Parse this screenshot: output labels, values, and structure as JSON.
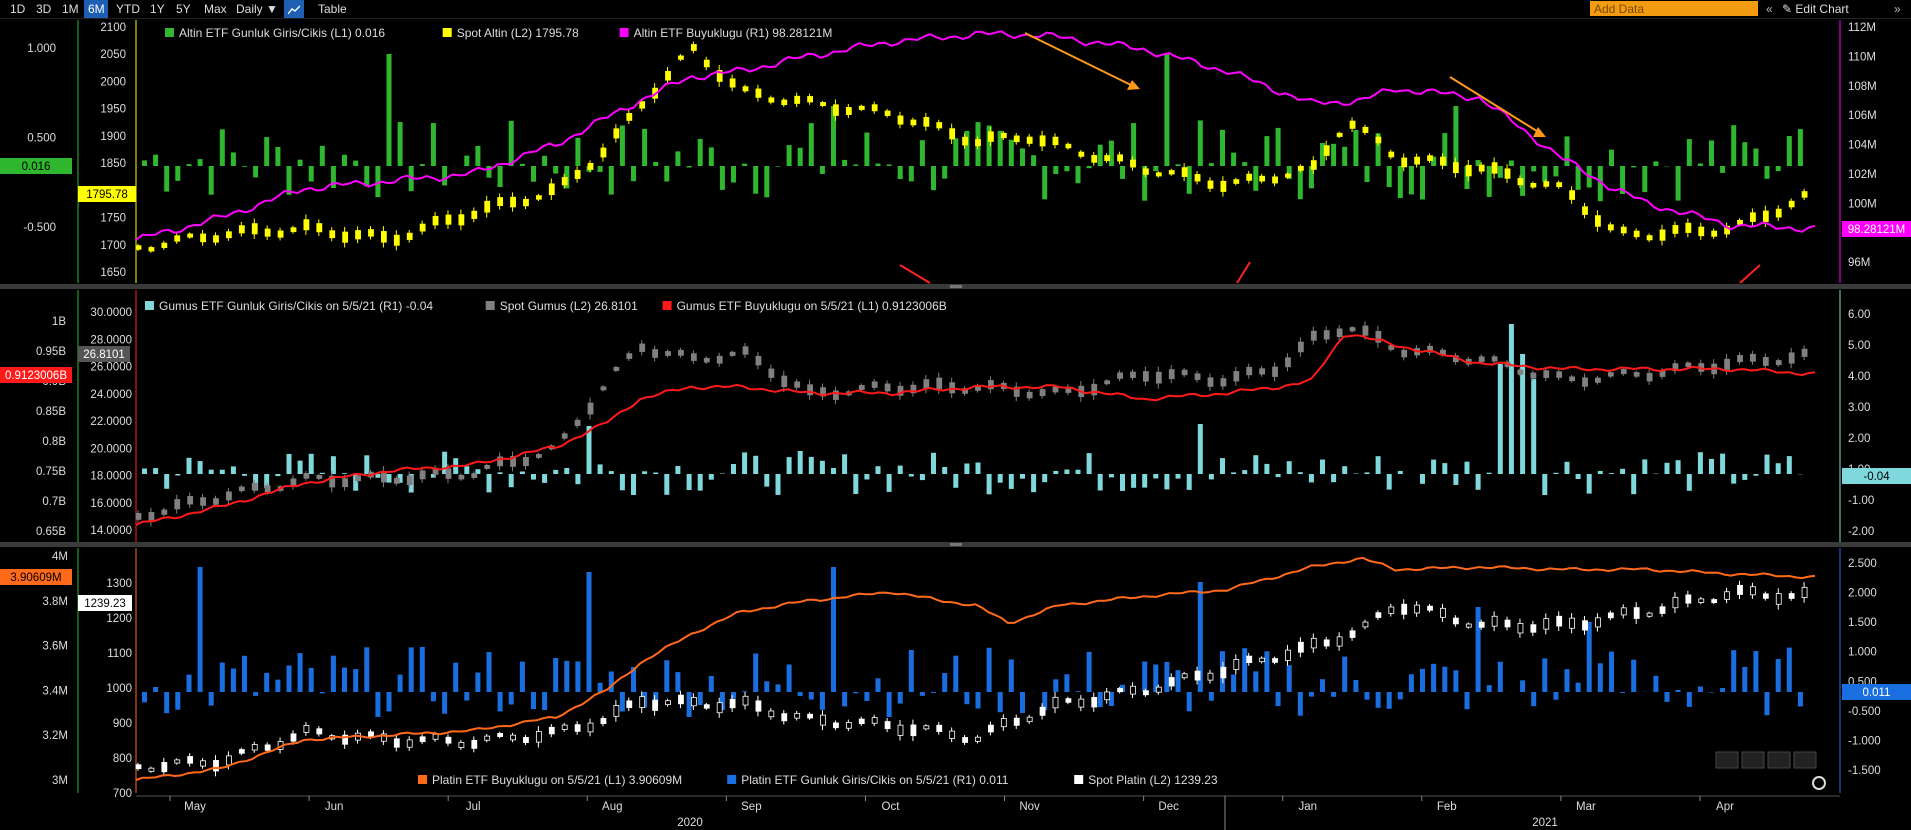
{
  "toolbar": {
    "ranges": [
      "1D",
      "3D",
      "1M",
      "6M",
      "YTD",
      "1Y",
      "5Y",
      "Max"
    ],
    "active_range": "6M",
    "period": "Daily ▼",
    "table_label": "Table",
    "add_data_placeholder": "Add Data",
    "edit_chart_label": "Edit Chart"
  },
  "colors": {
    "gold_flow": "#2fb82f",
    "gold_price": "#ffff00",
    "gold_etf": "#ff00ff",
    "silver_flow": "#7fd8dc",
    "silver_price": "#808080",
    "silver_etf": "#ff1a1a",
    "plat_etf": "#ff6a1a",
    "plat_flow": "#1a6fe0",
    "plat_price": "#ffffff",
    "arrow": "#ff9a1a",
    "accent_red": "#ff2222"
  },
  "x_axis": {
    "months": [
      "May",
      "Jun",
      "Jul",
      "Aug",
      "Sep",
      "Oct",
      "Nov",
      "Dec",
      "Jan",
      "Feb",
      "Mar",
      "Apr"
    ],
    "years": [
      "2020",
      "2021"
    ]
  },
  "chart_data": [
    {
      "type": "line",
      "panel": "gold",
      "legend": [
        {
          "name": "Altin ETF Gunluk Giris/Cikis (L1) 0.016",
          "color": "#2fb82f"
        },
        {
          "name": "Spot Altin (L2) 1795.78",
          "color": "#ffff00"
        },
        {
          "name": "Altin ETF Buyuklugu (R1) 98.28121M",
          "color": "#ff00ff"
        }
      ],
      "left_axis_flow": {
        "ticks": [
          "1.000",
          "0.500",
          "-0.500"
        ],
        "tag": "0.016"
      },
      "left_axis_price": {
        "ticks": [
          "2100",
          "2050",
          "2000",
          "1950",
          "1900",
          "1850",
          "1800",
          "1750",
          "1700",
          "1650"
        ],
        "tag": "1795.78"
      },
      "right_axis": {
        "ticks": [
          "112M",
          "110M",
          "108M",
          "106M",
          "104M",
          "102M",
          "100M",
          "98M",
          "96M"
        ],
        "tag": "98.28121M"
      },
      "series": [
        {
          "name": "Altin ETF Buyuklugu",
          "unit": "M",
          "x": [
            0,
            0.05,
            0.1,
            0.15,
            0.2,
            0.25,
            0.3,
            0.33,
            0.36,
            0.4,
            0.45,
            0.5,
            0.53,
            0.55,
            0.6,
            0.65,
            0.7,
            0.73,
            0.75,
            0.8,
            0.85,
            0.88,
            0.9,
            0.95,
            1.0
          ],
          "values": [
            97.5,
            99,
            101,
            101.5,
            102,
            104,
            107,
            108.6,
            109,
            110,
            111,
            111.5,
            111.5,
            111.3,
            110.5,
            109,
            106.8,
            107,
            107.8,
            107.2,
            103,
            101,
            100,
            98.5,
            98.28
          ]
        },
        {
          "name": "Spot Altin",
          "unit": "USD",
          "x": [
            0,
            0.05,
            0.1,
            0.15,
            0.2,
            0.25,
            0.28,
            0.3,
            0.33,
            0.36,
            0.4,
            0.45,
            0.5,
            0.53,
            0.55,
            0.6,
            0.65,
            0.7,
            0.72,
            0.75,
            0.8,
            0.85,
            0.88,
            0.9,
            0.95,
            1.0
          ],
          "values": [
            1695,
            1720,
            1730,
            1710,
            1760,
            1800,
            1880,
            1960,
            2060,
            1980,
            1960,
            1940,
            1890,
            1900,
            1880,
            1840,
            1810,
            1840,
            1930,
            1860,
            1840,
            1800,
            1720,
            1720,
            1730,
            1795.78
          ]
        }
      ]
    },
    {
      "type": "line",
      "panel": "silver",
      "legend": [
        {
          "name": "Gumus ETF Gunluk Giris/Cikis on 5/5/21 (R1) -0.04",
          "color": "#7fd8dc"
        },
        {
          "name": "Spot Gumus (L2) 26.8101",
          "color": "#808080"
        },
        {
          "name": "Gumus ETF Buyuklugu on 5/5/21 (L1) 0.9123006B",
          "color": "#ff1a1a"
        }
      ],
      "left_axis_etf": {
        "ticks": [
          "1B",
          "0.95B",
          "0.9B",
          "0.85B",
          "0.8B",
          "0.75B",
          "0.7B",
          "0.65B"
        ],
        "tag": "0.9123006B"
      },
      "left_axis_price": {
        "ticks": [
          "30.0000",
          "28.0000",
          "26.0000",
          "24.0000",
          "22.0000",
          "20.0000",
          "18.0000",
          "16.0000",
          "14.0000"
        ],
        "tag": "26.8101"
      },
      "right_axis": {
        "ticks": [
          "6.00",
          "5.00",
          "4.00",
          "3.00",
          "2.00",
          "1.00",
          "-1.00",
          "-2.00"
        ],
        "tag": "-0.04"
      },
      "series": [
        {
          "name": "Gumus ETF Buyuklugu",
          "unit": "B",
          "x": [
            0,
            0.05,
            0.1,
            0.15,
            0.2,
            0.25,
            0.28,
            0.3,
            0.33,
            0.36,
            0.4,
            0.45,
            0.5,
            0.55,
            0.6,
            0.65,
            0.68,
            0.7,
            0.72,
            0.75,
            0.8,
            0.85,
            0.9,
            0.95,
            1.0
          ],
          "values": [
            0.66,
            0.69,
            0.73,
            0.75,
            0.76,
            0.79,
            0.83,
            0.87,
            0.89,
            0.89,
            0.88,
            0.88,
            0.89,
            0.89,
            0.87,
            0.88,
            0.89,
            0.9,
            0.98,
            0.96,
            0.93,
            0.92,
            0.92,
            0.92,
            0.912
          ]
        },
        {
          "name": "Spot Gumus",
          "unit": "USD",
          "x": [
            0,
            0.05,
            0.1,
            0.15,
            0.2,
            0.25,
            0.28,
            0.3,
            0.33,
            0.36,
            0.4,
            0.45,
            0.5,
            0.55,
            0.6,
            0.65,
            0.68,
            0.7,
            0.72,
            0.75,
            0.8,
            0.85,
            0.9,
            0.95,
            1.0
          ],
          "values": [
            15.0,
            16.5,
            17.7,
            17.8,
            18.2,
            20.0,
            25.0,
            27.5,
            26.5,
            27.0,
            24.0,
            24.5,
            24.5,
            24.0,
            25.5,
            25.0,
            26.0,
            28.0,
            29.0,
            27.3,
            26.5,
            25.0,
            25.5,
            26.3,
            26.81
          ]
        }
      ]
    },
    {
      "type": "line",
      "panel": "platinum",
      "legend": [
        {
          "name": "Platin ETF Buyuklugu on 5/5/21 (L1) 3.90609M",
          "color": "#ff6a1a"
        },
        {
          "name": "Platin ETF Gunluk Giris/Cikis on 5/5/21 (R1) 0.011",
          "color": "#1a6fe0"
        },
        {
          "name": "Spot Platin (L2) 1239.23",
          "color": "#ffffff"
        }
      ],
      "left_axis_etf": {
        "ticks": [
          "4M",
          "3.8M",
          "3.6M",
          "3.4M",
          "3.2M",
          "3M"
        ],
        "tag": "3.90609M"
      },
      "left_axis_price": {
        "ticks": [
          "1300",
          "1200",
          "1100",
          "1000",
          "900",
          "800",
          "700"
        ],
        "tag": "1239.23"
      },
      "right_axis": {
        "ticks": [
          "2.500",
          "2.000",
          "1.500",
          "1.000",
          "0.500",
          "-0.500",
          "-1.000",
          "-1.500"
        ],
        "tag": "0.011"
      },
      "series": [
        {
          "name": "Platin ETF Buyuklugu",
          "unit": "M",
          "x": [
            0,
            0.05,
            0.1,
            0.15,
            0.2,
            0.25,
            0.28,
            0.3,
            0.33,
            0.36,
            0.4,
            0.45,
            0.48,
            0.5,
            0.52,
            0.55,
            0.6,
            0.65,
            0.7,
            0.73,
            0.75,
            0.8,
            0.85,
            0.9,
            0.95,
            1.0
          ],
          "values": [
            3.0,
            3.05,
            3.18,
            3.2,
            3.22,
            3.28,
            3.4,
            3.52,
            3.65,
            3.75,
            3.8,
            3.84,
            3.8,
            3.78,
            3.7,
            3.78,
            3.82,
            3.85,
            3.95,
            3.99,
            3.94,
            3.95,
            3.94,
            3.94,
            3.92,
            3.906
          ]
        },
        {
          "name": "Spot Platin",
          "unit": "USD",
          "x": [
            0,
            0.05,
            0.1,
            0.15,
            0.2,
            0.25,
            0.28,
            0.3,
            0.33,
            0.36,
            0.4,
            0.45,
            0.48,
            0.5,
            0.52,
            0.55,
            0.6,
            0.65,
            0.7,
            0.73,
            0.75,
            0.8,
            0.85,
            0.9,
            0.95,
            1.0
          ],
          "values": [
            765,
            780,
            860,
            840,
            835,
            860,
            900,
            950,
            940,
            940,
            895,
            880,
            860,
            845,
            890,
            940,
            980,
            1040,
            1100,
            1150,
            1220,
            1160,
            1160,
            1200,
            1250,
            1239.23
          ]
        }
      ]
    }
  ]
}
